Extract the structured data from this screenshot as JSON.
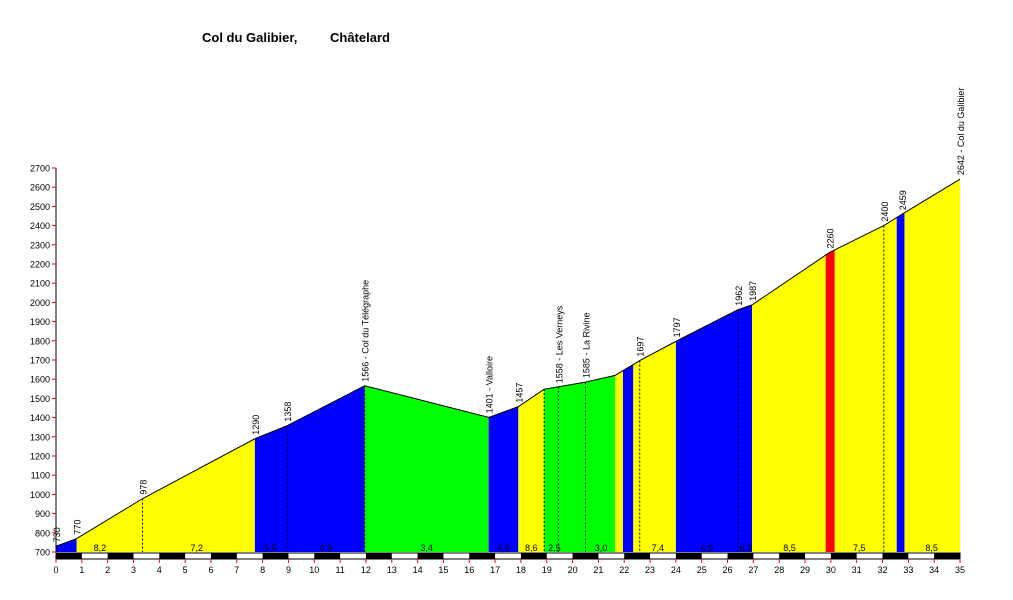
{
  "chart_data": {
    "type": "area",
    "title": [
      "Col du Galibier,",
      "Châtelard"
    ],
    "xlabel": "",
    "ylabel": "",
    "xlim": [
      0,
      35
    ],
    "ylim": [
      700,
      2700
    ],
    "x_ticks": [
      0,
      1,
      2,
      3,
      4,
      5,
      6,
      7,
      8,
      9,
      10,
      11,
      12,
      13,
      14,
      15,
      16,
      17,
      18,
      19,
      20,
      21,
      22,
      23,
      24,
      25,
      26,
      27,
      28,
      29,
      30,
      31,
      32,
      33,
      34,
      35
    ],
    "y_ticks": [
      700,
      800,
      900,
      1000,
      1100,
      1200,
      1300,
      1400,
      1500,
      1600,
      1700,
      1800,
      1900,
      2000,
      2100,
      2200,
      2300,
      2400,
      2500,
      2600,
      2700
    ],
    "profile": [
      {
        "x": 0,
        "y": 730
      },
      {
        "x": 0.8,
        "y": 770
      },
      {
        "x": 3.35,
        "y": 978
      },
      {
        "x": 7.7,
        "y": 1290
      },
      {
        "x": 8.95,
        "y": 1358
      },
      {
        "x": 11.95,
        "y": 1566
      },
      {
        "x": 16.75,
        "y": 1401
      },
      {
        "x": 17.9,
        "y": 1457
      },
      {
        "x": 18.9,
        "y": 1548
      },
      {
        "x": 20.5,
        "y": 1585
      },
      {
        "x": 21.65,
        "y": 1620
      },
      {
        "x": 22.6,
        "y": 1697
      },
      {
        "x": 24,
        "y": 1797
      },
      {
        "x": 26.4,
        "y": 1962
      },
      {
        "x": 26.95,
        "y": 1987
      },
      {
        "x": 29.95,
        "y": 2260
      },
      {
        "x": 32.05,
        "y": 2400
      },
      {
        "x": 32.75,
        "y": 2459
      },
      {
        "x": 35,
        "y": 2642
      }
    ],
    "segments": [
      {
        "from": 0,
        "to": 0.8,
        "color": "blue",
        "label": ""
      },
      {
        "from": 0.8,
        "to": 7.7,
        "color": "yellow",
        "label": "8,2 / 7,2"
      },
      {
        "from": 7.7,
        "to": 11.95,
        "color": "blue",
        "label": "5,5 / 6,9"
      },
      {
        "from": 11.95,
        "to": 16.75,
        "color": "green",
        "label": "3,4"
      },
      {
        "from": 16.75,
        "to": 17.9,
        "color": "blue",
        "label": "4,9"
      },
      {
        "from": 17.9,
        "to": 18.9,
        "color": "yellow",
        "label": "8,6"
      },
      {
        "from": 18.9,
        "to": 21.65,
        "color": "green",
        "label": "2,5 / 3,0"
      },
      {
        "from": 21.65,
        "to": 21.95,
        "color": "yellow",
        "label": ""
      },
      {
        "from": 21.95,
        "to": 22.35,
        "color": "blue",
        "label": ""
      },
      {
        "from": 22.35,
        "to": 24,
        "color": "yellow",
        "label": "7,4"
      },
      {
        "from": 24,
        "to": 26.95,
        "color": "blue",
        "label": "6,9 / 6,3"
      },
      {
        "from": 26.95,
        "to": 29.8,
        "color": "yellow",
        "label": "8,5"
      },
      {
        "from": 29.8,
        "to": 30.15,
        "color": "red",
        "label": ""
      },
      {
        "from": 30.15,
        "to": 32.55,
        "color": "yellow",
        "label": "7,5"
      },
      {
        "from": 32.55,
        "to": 32.85,
        "color": "blue",
        "label": ""
      },
      {
        "from": 32.85,
        "to": 35,
        "color": "yellow",
        "label": "8,5"
      }
    ],
    "gradients": [
      {
        "x": 1.7,
        "text": "8,2"
      },
      {
        "x": 5.45,
        "text": "7,2"
      },
      {
        "x": 8.3,
        "text": "5,5"
      },
      {
        "x": 10.45,
        "text": "6,9"
      },
      {
        "x": 14.35,
        "text": "3,4"
      },
      {
        "x": 17.3,
        "text": "4,9"
      },
      {
        "x": 18.4,
        "text": "8,6"
      },
      {
        "x": 19.3,
        "text": "2,5"
      },
      {
        "x": 21.1,
        "text": "3,0"
      },
      {
        "x": 23.3,
        "text": "7,4"
      },
      {
        "x": 25.2,
        "text": "6,9"
      },
      {
        "x": 26.7,
        "text": "6,3"
      },
      {
        "x": 28.4,
        "text": "8,5"
      },
      {
        "x": 31.1,
        "text": "7,5"
      },
      {
        "x": 33.9,
        "text": "8,5"
      }
    ],
    "waypoints": [
      {
        "x": 0,
        "y": 730,
        "text": "730"
      },
      {
        "x": 0.8,
        "y": 770,
        "text": "770"
      },
      {
        "x": 3.35,
        "y": 978,
        "text": "978"
      },
      {
        "x": 7.7,
        "y": 1290,
        "text": "1290"
      },
      {
        "x": 8.95,
        "y": 1358,
        "text": "1358"
      },
      {
        "x": 11.95,
        "y": 1566,
        "text": "1566 - Col du Télégraphe"
      },
      {
        "x": 16.75,
        "y": 1401,
        "text": "1401 - Valloire"
      },
      {
        "x": 17.9,
        "y": 1457,
        "text": "1457"
      },
      {
        "x": 19.45,
        "y": 1558,
        "text": "1558 - Les Verneys"
      },
      {
        "x": 20.5,
        "y": 1585,
        "text": "1585 - La Rivine"
      },
      {
        "x": 22.6,
        "y": 1697,
        "text": "1697"
      },
      {
        "x": 24,
        "y": 1797,
        "text": "1797"
      },
      {
        "x": 26.4,
        "y": 1962,
        "text": "1962"
      },
      {
        "x": 26.95,
        "y": 1987,
        "text": "1987"
      },
      {
        "x": 29.95,
        "y": 2260,
        "text": "2260"
      },
      {
        "x": 32.05,
        "y": 2400,
        "text": "2400"
      },
      {
        "x": 32.75,
        "y": 2459,
        "text": "2459"
      },
      {
        "x": 35,
        "y": 2642,
        "text": "2642 - Col du Galibier"
      }
    ],
    "dashed_markers": [
      3.35,
      8.95,
      11.95,
      18.9,
      19.45,
      20.5,
      22.6,
      26.4,
      32.05
    ],
    "colors": {
      "yellow": "#ffff00",
      "blue": "#0000ff",
      "green": "#00ff00",
      "red": "#ff0000",
      "axis_tick": "#ff0000",
      "line": "#000000"
    }
  }
}
